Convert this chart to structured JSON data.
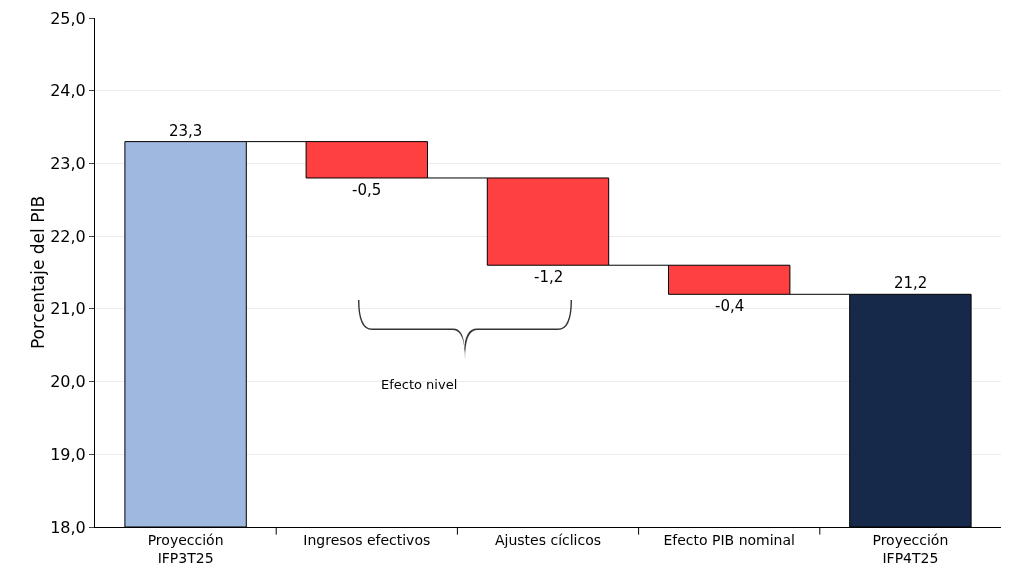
{
  "chart_data": {
    "type": "bar",
    "ylabel": "Porcentaje del PIB",
    "categories": [
      "Proyección\nIFP3T25",
      "Ingresos efectivos",
      "Ajustes cíclicos",
      "Efecto PIB nominal",
      "Proyección\nIFP4T25"
    ],
    "values": [
      23.3,
      -0.5,
      -1.2,
      -0.4,
      21.2
    ],
    "base": [
      null,
      23.3,
      22.8,
      21.6,
      null
    ],
    "colors": [
      "#9fb8e0",
      "#ff4040",
      "#ff4040",
      "#ff4040",
      "#17294a"
    ],
    "value_labels": [
      "23,3",
      "-0,5",
      "-1,2",
      "-0,4",
      "21,2"
    ],
    "ylim": [
      18,
      25
    ],
    "yticks": [
      {
        "value": 18,
        "label": "18,0"
      },
      {
        "value": 19,
        "label": "19,0"
      },
      {
        "value": 20,
        "label": "20,0"
      },
      {
        "value": 21,
        "label": "21,0"
      },
      {
        "value": 22,
        "label": "22,0"
      },
      {
        "value": 23,
        "label": "23,0"
      },
      {
        "value": 24,
        "label": "24,0"
      },
      {
        "value": 25,
        "label": "25,0"
      }
    ],
    "grid": "y",
    "annotations": [
      "Efecto nivel"
    ]
  }
}
